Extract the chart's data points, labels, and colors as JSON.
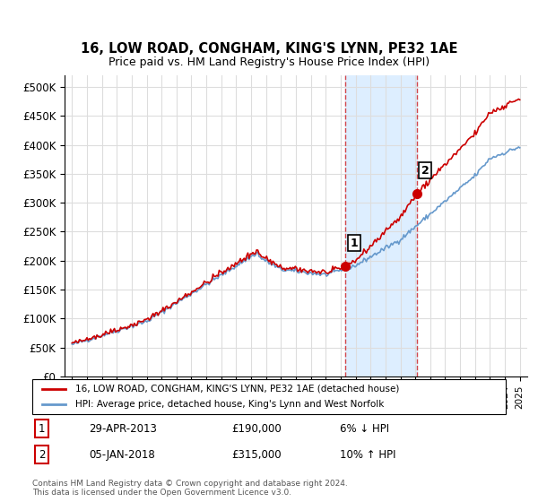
{
  "title": "16, LOW ROAD, CONGHAM, KING'S LYNN, PE32 1AE",
  "subtitle": "Price paid vs. HM Land Registry's House Price Index (HPI)",
  "ylabel_ticks": [
    "£0",
    "£50K",
    "£100K",
    "£150K",
    "£200K",
    "£250K",
    "£300K",
    "£350K",
    "£400K",
    "£450K",
    "£500K"
  ],
  "ytick_values": [
    0,
    50000,
    100000,
    150000,
    200000,
    250000,
    300000,
    350000,
    400000,
    450000,
    500000
  ],
  "ylim": [
    0,
    520000
  ],
  "hpi_color": "#6699CC",
  "price_color": "#CC0000",
  "sale1_date_label": "29-APR-2013",
  "sale1_price": 190000,
  "sale1_pct": "6% ↓ HPI",
  "sale1_index": 1,
  "sale2_date_label": "05-JAN-2018",
  "sale2_price": 315000,
  "sale2_pct": "10% ↑ HPI",
  "sale2_index": 2,
  "legend_line1": "16, LOW ROAD, CONGHAM, KING'S LYNN, PE32 1AE (detached house)",
  "legend_line2": "HPI: Average price, detached house, King's Lynn and West Norfolk",
  "footnote": "Contains HM Land Registry data © Crown copyright and database right 2024.\nThis data is licensed under the Open Government Licence v3.0.",
  "background_color": "#FFFFFF",
  "plot_bg_color": "#FFFFFF",
  "grid_color": "#DDDDDD",
  "highlight_region_color": "#DDEEFF",
  "x_start_year": 1995,
  "x_end_year": 2025
}
